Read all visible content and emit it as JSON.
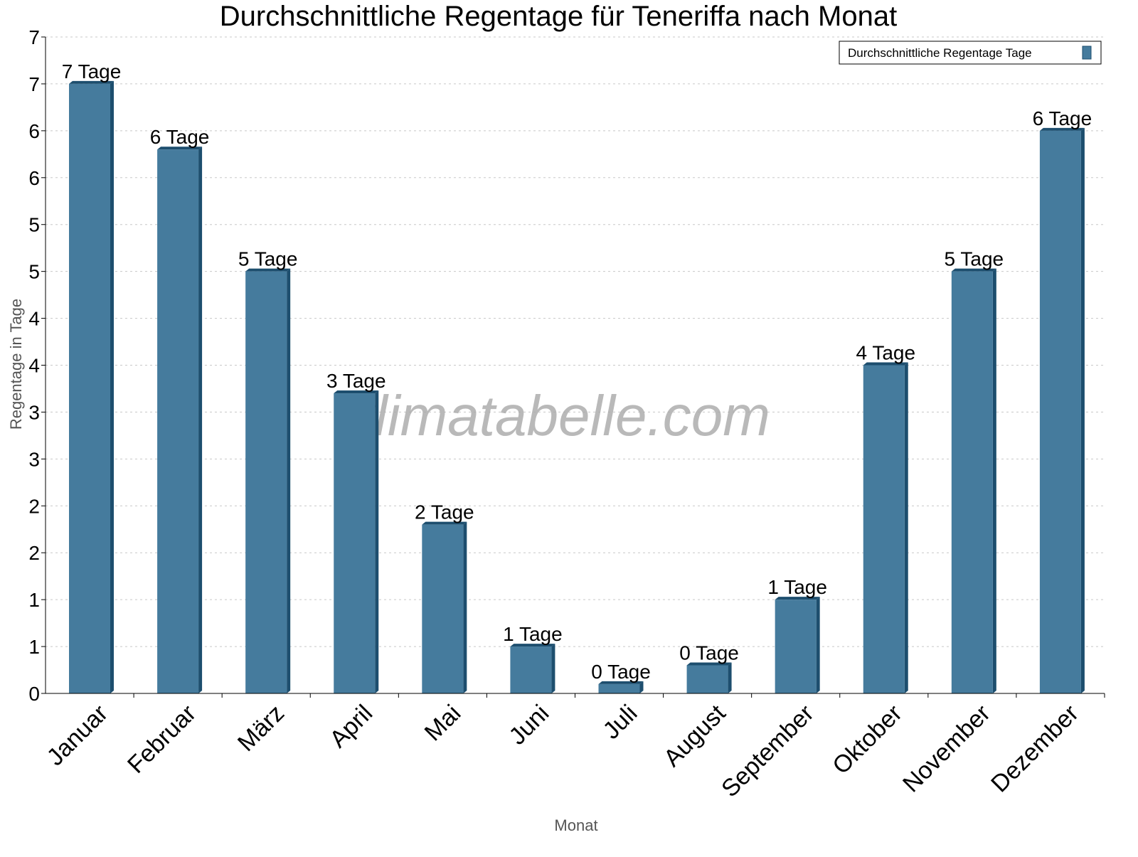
{
  "chart_data": {
    "type": "bar",
    "title": "Durchschnittliche Regentage für Teneriffa nach Monat",
    "xlabel": "Monat",
    "ylabel": "Regentage in Tage",
    "ylim": [
      0,
      7
    ],
    "grid": true,
    "legend_position": "top-right",
    "watermark": "klimatabelle.com",
    "y_ticks": [
      0,
      0.5,
      1,
      1.5,
      2,
      2.5,
      3,
      3.5,
      4,
      4.5,
      5,
      5.5,
      6,
      6.5,
      7
    ],
    "y_tick_labels": [
      "0",
      "1",
      "1",
      "2",
      "2",
      "3",
      "3",
      "4",
      "4",
      "5",
      "5",
      "6",
      "6",
      "7",
      "7"
    ],
    "categories": [
      "Januar",
      "Februar",
      "März",
      "April",
      "Mai",
      "Juni",
      "Juli",
      "August",
      "September",
      "Oktober",
      "November",
      "Dezember"
    ],
    "series": [
      {
        "name": "Durchschnittliche Regentage Tage",
        "color": "#457b9d",
        "side_color": "#1d4e6e",
        "values": [
          6.5,
          5.8,
          4.5,
          3.2,
          1.8,
          0.5,
          0.1,
          0.3,
          1.0,
          3.5,
          4.5,
          6.0
        ],
        "data_labels": [
          "7 Tage",
          "6 Tage",
          "5 Tage",
          "3 Tage",
          "2 Tage",
          "1 Tage",
          "0 Tage",
          "0 Tage",
          "1 Tage",
          "4 Tage",
          "5 Tage",
          "6 Tage"
        ]
      }
    ]
  }
}
